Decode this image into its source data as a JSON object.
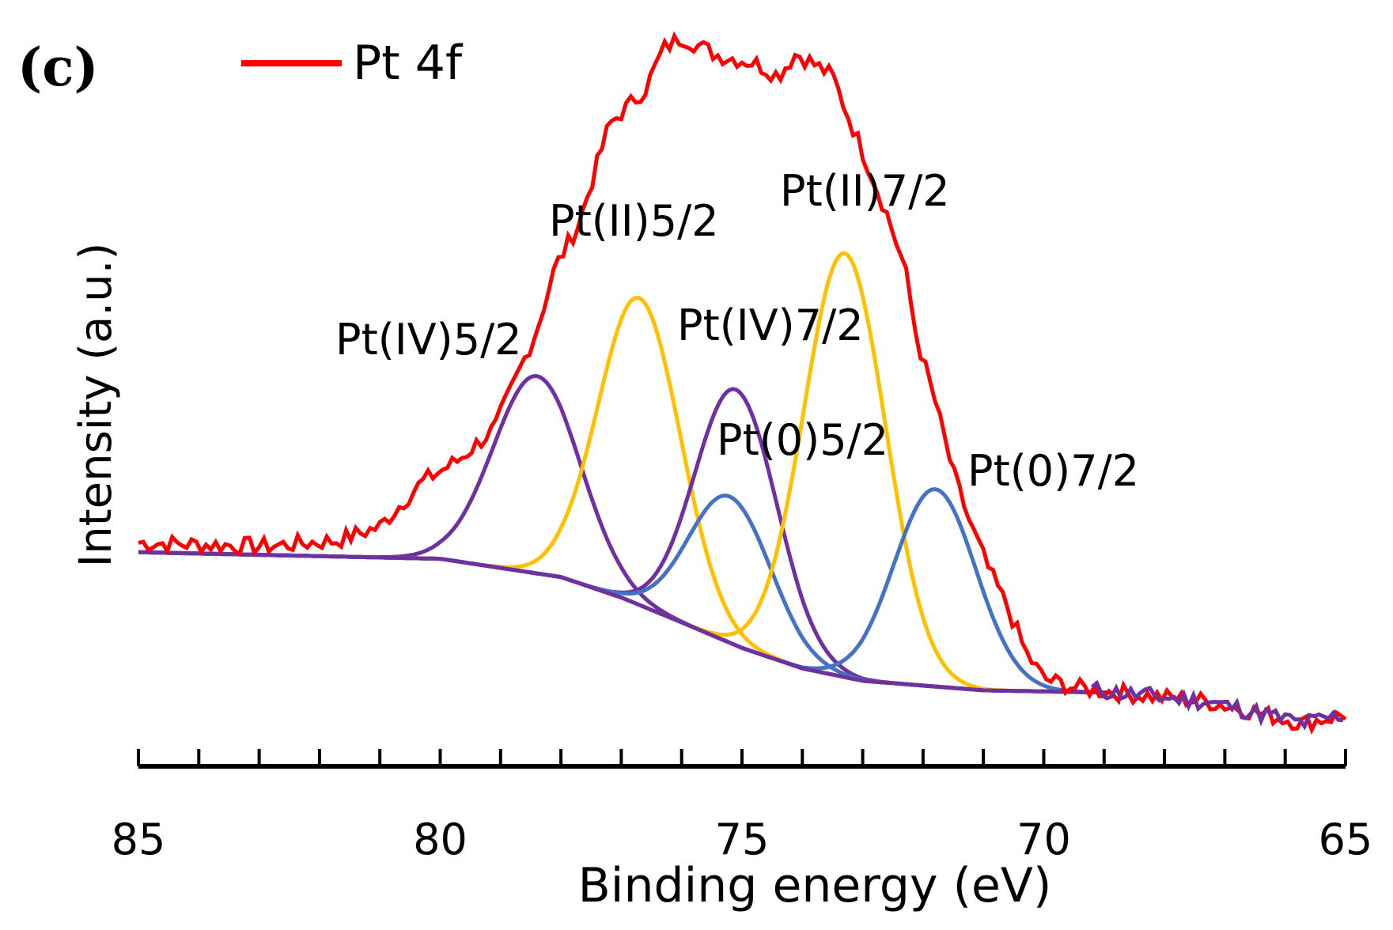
{
  "chart_data": {
    "type": "line",
    "panel_label": "(c)",
    "xlabel": "Binding energy (eV)",
    "ylabel": "Intensity (a.u.)",
    "xlim": [
      85,
      65
    ],
    "x_reversed": true,
    "x_ticks": [
      85,
      80,
      75,
      70,
      65
    ],
    "x_minor_step": 1,
    "y_ticks_shown": false,
    "grid": false,
    "legend": {
      "placement": "top-left",
      "entries": [
        {
          "label": "Pt 4f",
          "color": "#FF0000"
        }
      ]
    },
    "colors": {
      "measured": "#FF0000",
      "Pt(IV)": "#7030A0",
      "Pt(II)": "#FFC000",
      "Pt(0)": "#4472C4"
    },
    "series": [
      {
        "name": "Pt 4f",
        "color": "#FF0000",
        "x": [
          85.0,
          82.9,
          81.7,
          81.0,
          80.3,
          79.7,
          79.1,
          78.4,
          78.1,
          77.7,
          77.2,
          76.6,
          76.3,
          76.0,
          75.4,
          74.8,
          74.4,
          74.1,
          73.5,
          73.3,
          73.0,
          72.6,
          72.3,
          72.1,
          71.8,
          71.5,
          71.2,
          70.9,
          70.6,
          70.3,
          70.0,
          69.5,
          68.8,
          68.1,
          67.3,
          66.6,
          65.7,
          65.0
        ],
        "y": [
          30.6,
          30.1,
          30.9,
          32.8,
          38.9,
          41.9,
          46.2,
          59.7,
          68.2,
          74.3,
          87.8,
          92.7,
          98.2,
          99.8,
          97.3,
          96.3,
          94.5,
          97.6,
          94.5,
          90.2,
          84.1,
          75.6,
          68.2,
          58.4,
          49.9,
          40.1,
          32.8,
          26.7,
          21.8,
          15.6,
          12.0,
          10.8,
          10.1,
          9.5,
          8.9,
          7.6,
          5.9,
          7.1
        ]
      }
    ],
    "background": {
      "x": [
        85,
        80,
        78,
        77,
        76,
        75,
        74,
        73,
        71,
        69,
        65
      ],
      "y": [
        29.3,
        28.4,
        25.9,
        23.1,
        19.7,
        16.2,
        13.4,
        11.7,
        10.4,
        10.1,
        10.0
      ]
    },
    "components": [
      {
        "name": "Pt(IV)5/2",
        "color": "#7030A0",
        "center": 78.4,
        "height": 27,
        "fwhm": 1.7
      },
      {
        "name": "Pt(II)5/2",
        "color": "#FFC000",
        "center": 76.7,
        "height": 42,
        "fwhm": 1.6
      },
      {
        "name": "Pt(IV)7/2",
        "color": "#7030A0",
        "center": 75.1,
        "height": 35,
        "fwhm": 1.6
      },
      {
        "name": "Pt(0)5/2",
        "color": "#4472C4",
        "center": 75.2,
        "height": 20,
        "fwhm": 1.6
      },
      {
        "name": "Pt(II)7/2",
        "color": "#FFC000",
        "center": 73.3,
        "height": 58,
        "fwhm": 1.6
      },
      {
        "name": "Pt(0)7/2",
        "color": "#4472C4",
        "center": 71.8,
        "height": 27,
        "fwhm": 1.6
      }
    ]
  }
}
